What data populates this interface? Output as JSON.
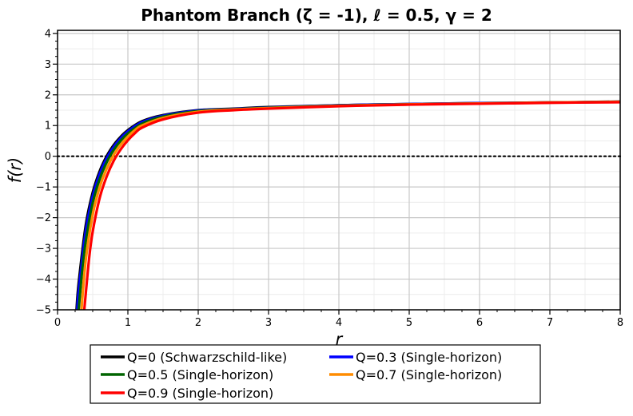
{
  "chart_data": {
    "type": "line",
    "title": "Phantom Branch (ζ = -1), ℓ = 0.5, γ = 2",
    "xlabel": "r",
    "ylabel": "f(r)",
    "xlim": [
      0,
      8
    ],
    "ylim": [
      -5,
      4.1
    ],
    "xticks": [
      "0",
      "1",
      "2",
      "3",
      "4",
      "5",
      "6",
      "7",
      "8"
    ],
    "yticks": [
      "-5",
      "-4",
      "-3",
      "-2",
      "-1",
      "0",
      "1",
      "2",
      "3",
      "4"
    ],
    "grid": true,
    "legend_position": "bottom",
    "reference_line": {
      "y": 0,
      "style": "dotted",
      "color": "#000000"
    },
    "series": [
      {
        "name": "Q=0 (Schwarzschild-like)",
        "color": "#000000",
        "x": [
          0.27,
          0.3,
          0.4,
          0.5,
          0.6,
          0.7,
          0.8,
          0.9,
          1.0,
          1.2,
          1.5,
          2.0,
          2.5,
          3.0,
          4.0,
          5.0,
          6.0,
          7.0,
          8.0
        ],
        "y": [
          -5.0,
          -4.14,
          -2.26,
          -1.18,
          -0.48,
          0.01,
          0.37,
          0.64,
          0.85,
          1.14,
          1.34,
          1.5,
          1.55,
          1.6,
          1.66,
          1.7,
          1.73,
          1.75,
          1.78
        ]
      },
      {
        "name": "Q=0.3 (Single-horizon)",
        "color": "#0000ff",
        "x": [
          0.28,
          0.3,
          0.4,
          0.5,
          0.6,
          0.7,
          0.8,
          0.9,
          1.0,
          1.2,
          1.5,
          2.0,
          2.5,
          3.0,
          4.0,
          5.0,
          6.0,
          7.0,
          8.0
        ],
        "y": [
          -5.0,
          -4.4,
          -2.45,
          -1.3,
          -0.57,
          -0.06,
          0.31,
          0.59,
          0.81,
          1.11,
          1.32,
          1.49,
          1.54,
          1.59,
          1.66,
          1.7,
          1.73,
          1.75,
          1.77
        ]
      },
      {
        "name": "Q=0.5 (Single-horizon)",
        "color": "#006400",
        "x": [
          0.3,
          0.35,
          0.4,
          0.5,
          0.6,
          0.7,
          0.8,
          0.9,
          1.0,
          1.2,
          1.5,
          2.0,
          2.5,
          3.0,
          4.0,
          5.0,
          6.0,
          7.0,
          8.0
        ],
        "y": [
          -5.0,
          -3.75,
          -2.8,
          -1.52,
          -0.74,
          -0.19,
          0.21,
          0.51,
          0.74,
          1.06,
          1.29,
          1.47,
          1.53,
          1.58,
          1.65,
          1.69,
          1.72,
          1.75,
          1.77
        ]
      },
      {
        "name": "Q=0.7 (Single-horizon)",
        "color": "#ff8c00",
        "x": [
          0.34,
          0.4,
          0.5,
          0.6,
          0.7,
          0.8,
          0.9,
          1.0,
          1.1,
          1.2,
          1.5,
          2.0,
          2.5,
          3.0,
          4.0,
          5.0,
          6.0,
          7.0,
          8.0
        ],
        "y": [
          -5.0,
          -3.4,
          -1.9,
          -1.0,
          -0.4,
          0.05,
          0.38,
          0.64,
          0.85,
          1.0,
          1.25,
          1.45,
          1.52,
          1.57,
          1.64,
          1.69,
          1.72,
          1.75,
          1.77
        ]
      },
      {
        "name": "Q=0.9 (Single-horizon)",
        "color": "#ff0000",
        "x": [
          0.38,
          0.45,
          0.5,
          0.6,
          0.7,
          0.8,
          0.9,
          1.0,
          1.1,
          1.2,
          1.5,
          2.0,
          2.5,
          3.0,
          4.0,
          5.0,
          6.0,
          7.0,
          8.0
        ],
        "y": [
          -5.0,
          -3.3,
          -2.45,
          -1.35,
          -0.65,
          -0.14,
          0.23,
          0.52,
          0.75,
          0.93,
          1.2,
          1.42,
          1.5,
          1.55,
          1.63,
          1.68,
          1.71,
          1.74,
          1.76
        ]
      }
    ]
  }
}
